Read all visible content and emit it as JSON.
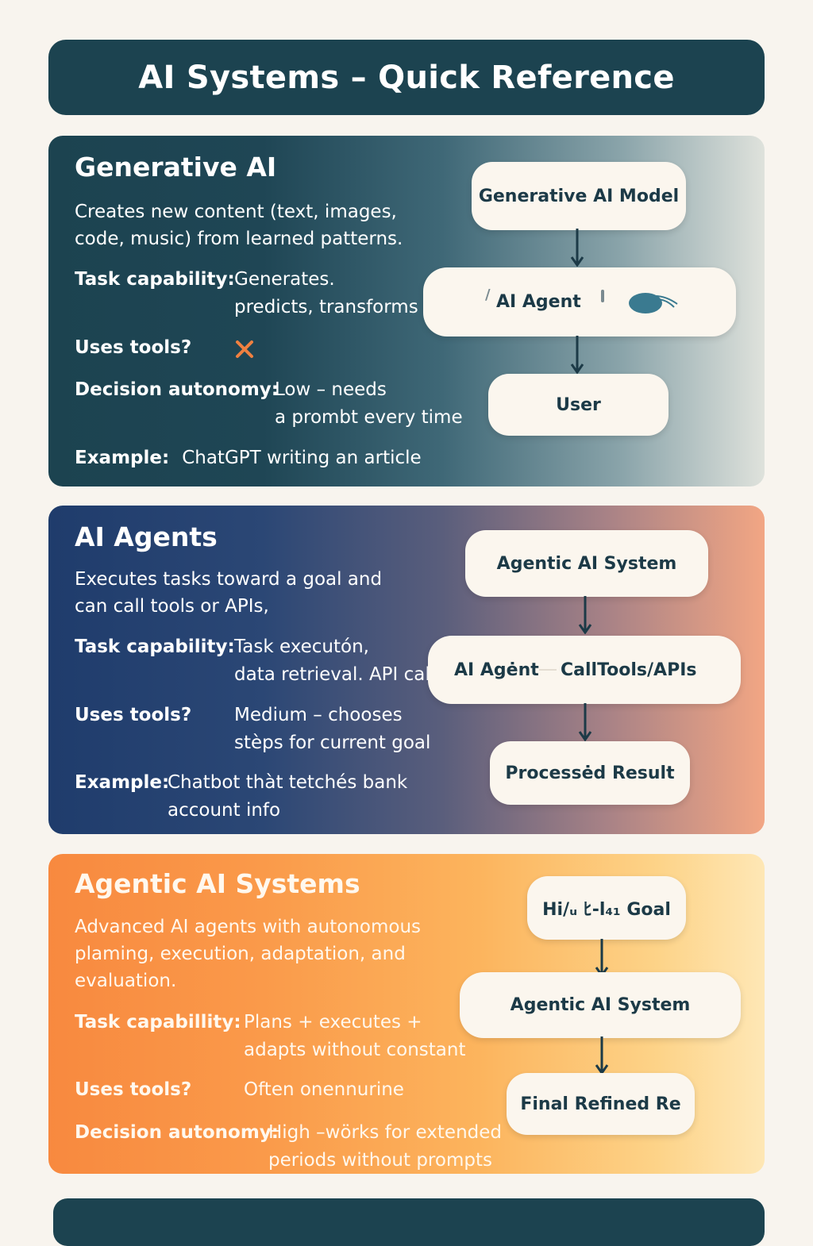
{
  "title": "AI Systems – Quick Reference",
  "generative": {
    "heading": "Generative AI",
    "description_lines": [
      "Creates new content (text, images,",
      "code, music) from learned patterns."
    ],
    "task_label": "Task capability:",
    "task_value_lines": [
      "Generates.",
      "predicts, transforms"
    ],
    "tools_label": "Uses tools?",
    "tools_value_icon": "x-mark-icon",
    "autonomy_label": "Decision autonomy:",
    "autonomy_value_lines": [
      "Low – needs",
      "a prombt every time"
    ],
    "example_label": "Example:",
    "example_value": "ChatGPT writing an article",
    "flow": [
      "Generative AI Model",
      "AI Agent",
      "User"
    ]
  },
  "agents": {
    "heading": "AI Agents",
    "description_lines": [
      "Executes tasks toward a goal and",
      "can call tools or APIs,"
    ],
    "task_label": "Task capability:",
    "task_value_lines": [
      "Task executón,",
      "data retrieval. API calll"
    ],
    "tools_label": "Uses tools?",
    "tools_value_lines": [
      "Medium – chooses",
      "stèps for current goal"
    ],
    "example_label": "Example:",
    "example_value_lines": [
      "Chatbot thàt tetchés bank",
      "account info"
    ],
    "flow": [
      "Agentic AI System",
      "AI Agėnt",
      "CallTools/APIs",
      "Processėd Result"
    ]
  },
  "agentic": {
    "heading": "Agentic AI Systems",
    "description_lines": [
      "Advanced AI agents with autonomous",
      "plaming, execution, adaptation, and",
      "evaluation."
    ],
    "task_label": "Task capabillity:",
    "task_value_lines": [
      "Plans + executes +",
      "adapts without constant"
    ],
    "tools_label": "Uses tools?",
    "tools_value": "Often onennurine",
    "autonomy_label": "Decision autonomy:",
    "autonomy_value_lines": [
      "High –wörks for extended",
      "periods without prompts"
    ],
    "flow": [
      "Hi/ᵤ ﾋ-l₄₁  Goal",
      "Agentic AI System",
      "Final Refined Re"
    ]
  },
  "colors": {
    "title_bg": "#1c4350",
    "node_bg": "#fbf6ee",
    "node_text": "#1c3a47",
    "x_mark": "#f08040",
    "arrow": "#1c3a47",
    "page_bg": "#f8f4ee"
  }
}
